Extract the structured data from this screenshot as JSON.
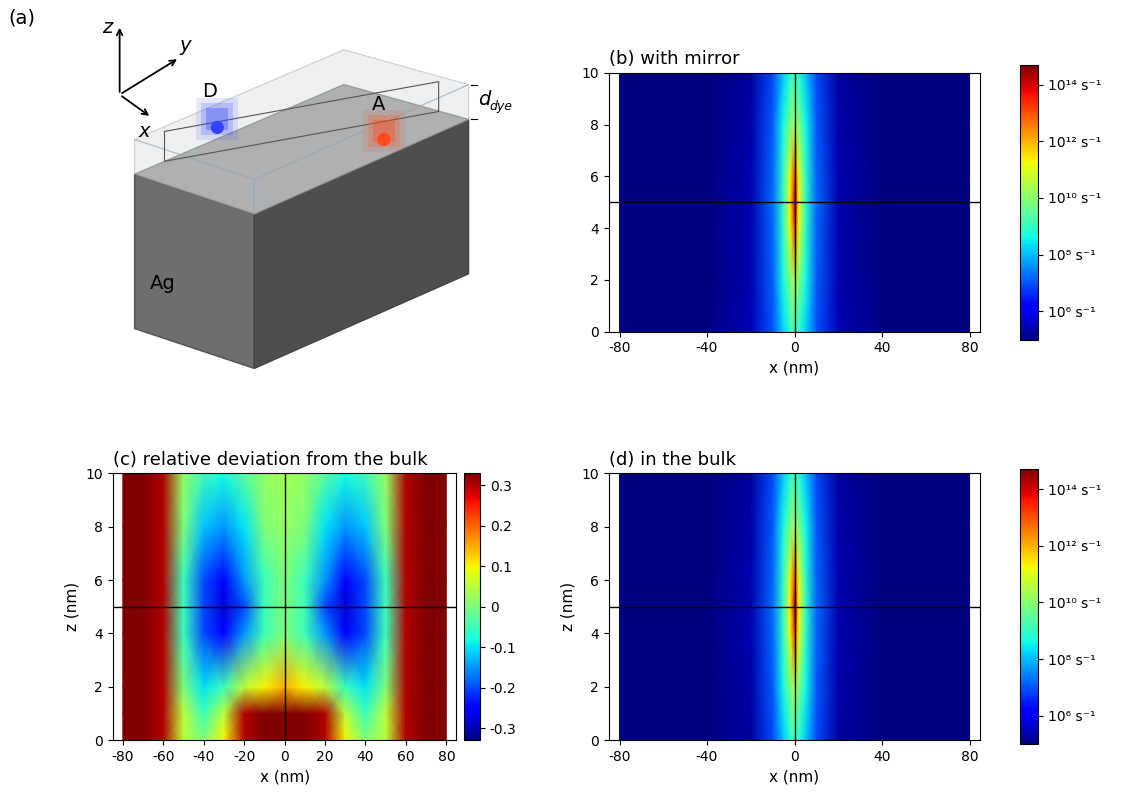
{
  "diagram": {
    "panel": "(a)",
    "axis_names": {
      "x": "x",
      "y": "y",
      "z": "z"
    },
    "donor": "D",
    "acceptor": "A",
    "substrate": "Ag",
    "thickness_label": {
      "text": "d",
      "subscript": "dye"
    }
  },
  "chart_data": [
    {
      "type": "heatmap",
      "title": "(b) with mirror",
      "xlabel": "x (nm)",
      "x": [
        -80,
        -40,
        -20,
        -10,
        -5,
        -2,
        0,
        2,
        5,
        10,
        20,
        40,
        80
      ],
      "y": [
        0,
        2,
        4,
        5,
        6,
        8,
        10
      ],
      "cells": [
        [
          60,
          5000,
          300000,
          10000000.0,
          170000000.0,
          800000000.0,
          1300000000.0,
          800000000.0,
          170000000.0,
          10000000.0,
          300000,
          5000,
          60
        ],
        [
          60,
          4000,
          240000,
          13000000.0,
          440000000.0,
          7500000000.0,
          21000000000.0,
          7500000000.0,
          440000000.0,
          13000000.0,
          240000,
          4000,
          60
        ],
        [
          60,
          4000,
          240000,
          15000000.0,
          900000000.0,
          120000000000.0,
          16000000000000.0,
          120000000000.0,
          900000000.0,
          15000000.0,
          240000,
          4000,
          60
        ],
        [
          60,
          4000,
          240000,
          16000000.0,
          1000000000.0,
          240000000000.0,
          100000000000000.0,
          240000000000.0,
          1000000000.0,
          16000000.0,
          240000,
          4000,
          60
        ],
        [
          60,
          4000,
          240000,
          15000000.0,
          900000000.0,
          120000000000.0,
          16000000000000.0,
          120000000000.0,
          900000000.0,
          15000000.0,
          240000,
          4000,
          60
        ],
        [
          60,
          4000,
          230000,
          12000000.0,
          400000000.0,
          7000000000.0,
          20000000000.0,
          7000000000.0,
          400000000.0,
          12000000.0,
          230000,
          4000,
          60
        ],
        [
          60,
          4000,
          200000,
          8000000.0,
          130000000.0,
          640000000.0,
          1000000000.0,
          640000000.0,
          130000000.0,
          8000000.0,
          200000,
          4000,
          60
        ]
      ],
      "xlim": [
        -85,
        85
      ],
      "ylim": [
        0,
        10
      ],
      "xticks": [
        -80,
        -40,
        0,
        40,
        80
      ],
      "yticks": [
        0,
        2,
        4,
        6,
        8,
        10
      ],
      "donor_position": [
        0,
        5
      ],
      "colorbar": {
        "log": true,
        "range": [
          100000,
          500000000000000.0
        ],
        "ticks": [
          {
            "value": 100000000000000.0,
            "label": "10¹⁴ s⁻¹"
          },
          {
            "value": 1000000000000.0,
            "label": "10¹² s⁻¹"
          },
          {
            "value": 10000000000.0,
            "label": "10¹⁰ s⁻¹"
          },
          {
            "value": 100000000.0,
            "label": "10⁸ s⁻¹"
          },
          {
            "value": 1000000.0,
            "label": "10⁶ s⁻¹"
          }
        ]
      }
    },
    {
      "type": "heatmap",
      "title": "(c) relative deviation from the bulk",
      "xlabel": "x (nm)",
      "ylabel": "z (nm)",
      "x": [
        -80,
        -70,
        -60,
        -50,
        -40,
        -30,
        -20,
        -10,
        0,
        10,
        20,
        30,
        40,
        50,
        60,
        70,
        80
      ],
      "y": [
        0,
        1,
        2,
        4,
        5,
        6,
        8,
        10
      ],
      "cells": [
        [
          0.35,
          0.35,
          0.3,
          0.05,
          0.0,
          0.1,
          0.3,
          0.35,
          0.35,
          0.35,
          0.3,
          0.1,
          0.0,
          0.05,
          0.3,
          0.35,
          0.35
        ],
        [
          0.35,
          0.35,
          0.3,
          0.05,
          -0.05,
          0.05,
          0.3,
          0.35,
          0.35,
          0.35,
          0.3,
          0.05,
          -0.05,
          0.05,
          0.3,
          0.35,
          0.35
        ],
        [
          0.35,
          0.35,
          0.3,
          0.0,
          -0.1,
          -0.05,
          0.05,
          0.1,
          0.15,
          0.1,
          0.05,
          -0.05,
          -0.1,
          0.0,
          0.3,
          0.35,
          0.35
        ],
        [
          0.35,
          0.35,
          0.3,
          -0.05,
          -0.2,
          -0.25,
          -0.15,
          -0.05,
          0.0,
          -0.05,
          -0.15,
          -0.25,
          -0.2,
          -0.05,
          0.3,
          0.35,
          0.35
        ],
        [
          0.35,
          0.35,
          0.3,
          -0.05,
          -0.2,
          -0.28,
          -0.2,
          -0.05,
          0.0,
          -0.05,
          -0.2,
          -0.28,
          -0.2,
          -0.05,
          0.3,
          0.35,
          0.35
        ],
        [
          0.35,
          0.35,
          0.3,
          -0.05,
          -0.2,
          -0.25,
          -0.15,
          -0.05,
          0.0,
          -0.05,
          -0.15,
          -0.25,
          -0.2,
          -0.05,
          0.3,
          0.35,
          0.35
        ],
        [
          0.35,
          0.35,
          0.3,
          0.0,
          -0.12,
          -0.15,
          -0.1,
          0.0,
          0.02,
          0.0,
          -0.1,
          -0.15,
          -0.12,
          0.0,
          0.3,
          0.35,
          0.35
        ],
        [
          0.35,
          0.35,
          0.3,
          0.02,
          -0.05,
          -0.08,
          -0.03,
          0.02,
          0.03,
          0.02,
          -0.03,
          -0.08,
          -0.05,
          0.02,
          0.3,
          0.35,
          0.35
        ]
      ],
      "xlim": [
        -85,
        85
      ],
      "ylim": [
        0,
        10
      ],
      "xticks": [
        -80,
        -60,
        -40,
        -20,
        0,
        20,
        40,
        60,
        80
      ],
      "yticks": [
        0,
        2,
        4,
        6,
        8,
        10
      ],
      "donor_position": [
        0,
        5
      ],
      "colorbar": {
        "log": false,
        "range": [
          -0.33,
          0.33
        ],
        "ticks": [
          0.3,
          0.2,
          0.1,
          0,
          -0.1,
          -0.2,
          -0.3
        ]
      }
    },
    {
      "type": "heatmap",
      "title": "(d) in the bulk",
      "xlabel": "x (nm)",
      "ylabel": "z (nm)",
      "x": [
        -80,
        -40,
        -20,
        -10,
        -5,
        -2,
        0,
        2,
        5,
        10,
        20,
        40,
        80
      ],
      "y": [
        0,
        2,
        4,
        5,
        6,
        8,
        10
      ],
      "cells": [
        [
          60,
          4000,
          200000,
          8000000.0,
          130000000.0,
          640000000.0,
          1000000000.0,
          640000000.0,
          130000000.0,
          8000000.0,
          200000,
          4000,
          60
        ],
        [
          60,
          4000,
          230000,
          12000000.0,
          400000000.0,
          7000000000.0,
          20000000000.0,
          7000000000.0,
          400000000.0,
          12000000.0,
          230000,
          4000,
          60
        ],
        [
          60,
          4000,
          240000,
          15000000.0,
          900000000.0,
          120000000000.0,
          16000000000000.0,
          120000000000.0,
          900000000.0,
          15000000.0,
          240000,
          4000,
          60
        ],
        [
          60,
          4000,
          240000,
          16000000.0,
          1000000000.0,
          240000000000.0,
          100000000000000.0,
          240000000000.0,
          1000000000.0,
          16000000.0,
          240000,
          4000,
          60
        ],
        [
          60,
          4000,
          240000,
          15000000.0,
          900000000.0,
          120000000000.0,
          16000000000000.0,
          120000000000.0,
          900000000.0,
          15000000.0,
          240000,
          4000,
          60
        ],
        [
          60,
          4000,
          230000,
          12000000.0,
          400000000.0,
          7000000000.0,
          20000000000.0,
          7000000000.0,
          400000000.0,
          12000000.0,
          230000,
          4000,
          60
        ],
        [
          60,
          4000,
          200000,
          8000000.0,
          130000000.0,
          640000000.0,
          1000000000.0,
          640000000.0,
          130000000.0,
          8000000.0,
          200000,
          4000,
          60
        ]
      ],
      "xlim": [
        -85,
        85
      ],
      "ylim": [
        0,
        10
      ],
      "xticks": [
        -80,
        -40,
        0,
        40,
        80
      ],
      "yticks": [
        0,
        2,
        4,
        6,
        8,
        10
      ],
      "donor_position": [
        0,
        5
      ],
      "colorbar": {
        "log": true,
        "range": [
          100000,
          500000000000000.0
        ],
        "ticks": [
          {
            "value": 100000000000000.0,
            "label": "10¹⁴ s⁻¹"
          },
          {
            "value": 1000000000000.0,
            "label": "10¹² s⁻¹"
          },
          {
            "value": 10000000000.0,
            "label": "10¹⁰ s⁻¹"
          },
          {
            "value": 100000000.0,
            "label": "10⁸ s⁻¹"
          },
          {
            "value": 1000000.0,
            "label": "10⁶ s⁻¹"
          }
        ]
      }
    }
  ]
}
